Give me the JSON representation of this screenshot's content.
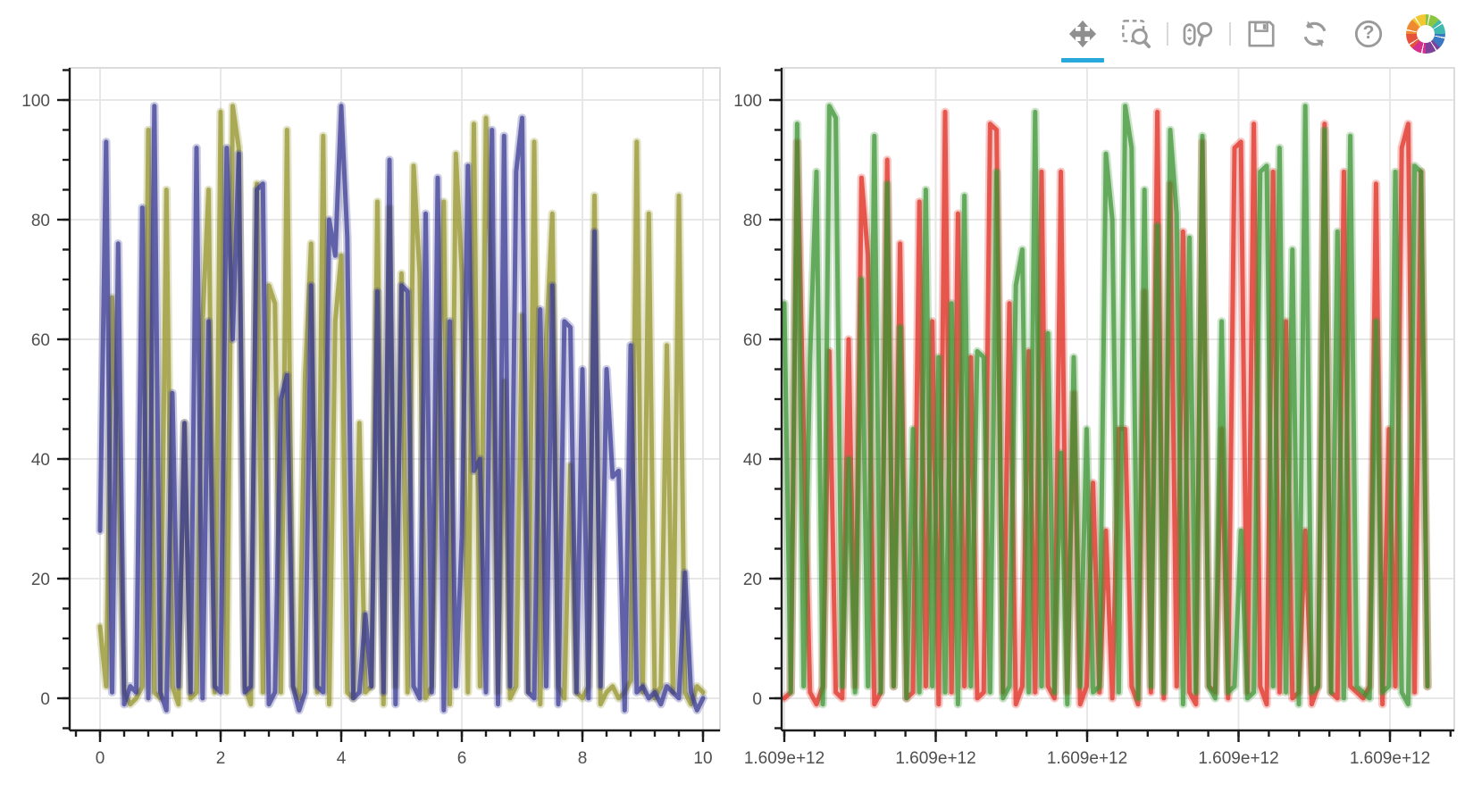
{
  "toolbar": {
    "tools": [
      {
        "name": "pan",
        "active": true
      },
      {
        "name": "box-zoom",
        "active": false
      },
      {
        "name": "wheel-zoom",
        "active": false
      },
      {
        "name": "save",
        "active": false
      },
      {
        "name": "reset",
        "active": false
      },
      {
        "name": "help",
        "active": false
      },
      {
        "name": "bokeh-logo",
        "active": false
      }
    ],
    "help_glyph": "?",
    "active_color": "#29a8dc",
    "icon_color": "#979797"
  },
  "chart_data": [
    {
      "type": "line",
      "title": "",
      "xlabel": "",
      "ylabel": "",
      "x_axis": {
        "range": [
          -0.5,
          10.3
        ],
        "ticks": [
          0,
          2,
          4,
          6,
          8,
          10
        ],
        "tick_labels": [
          "0",
          "2",
          "4",
          "6",
          "8",
          "10"
        ],
        "minor_per_major": 4
      },
      "y_axis": {
        "range": [
          -5.4,
          105.4
        ],
        "ticks": [
          0,
          20,
          40,
          60,
          80,
          100
        ],
        "tick_labels": [
          "0",
          "20",
          "40",
          "60",
          "80",
          "100"
        ],
        "minor_step": 5
      },
      "grid": true,
      "legend": "none",
      "series": [
        {
          "name": "olive",
          "color": "#94932a",
          "opacity": 0.72,
          "width": 6,
          "x_start": 0,
          "x_step": 0.1,
          "values": [
            12,
            2,
            67,
            40,
            1,
            -1,
            0,
            2,
            95,
            1,
            0,
            85,
            2,
            -1,
            46,
            0,
            1,
            63,
            85,
            1,
            98,
            1,
            99,
            92,
            2,
            -1,
            86,
            1,
            69,
            66,
            1,
            95,
            2,
            0,
            54,
            76,
            1,
            94,
            -1,
            63,
            74,
            1,
            0,
            46,
            1,
            2,
            83,
            -1,
            82,
            2,
            71,
            1,
            89,
            71,
            0,
            2,
            46,
            83,
            -1,
            91,
            71,
            1,
            96,
            2,
            97,
            64,
            1,
            53,
            0,
            2,
            64,
            1,
            93,
            -1,
            60,
            81,
            2,
            0,
            39,
            1,
            0,
            2,
            84,
            -1,
            1,
            2,
            0,
            1,
            3,
            93,
            1,
            81,
            0,
            2,
            59,
            1,
            84,
            1,
            -1,
            2,
            1
          ]
        },
        {
          "name": "slate-blue",
          "color": "#373794",
          "opacity": 0.72,
          "width": 6,
          "x_start": 0,
          "x_step": 0.1,
          "values": [
            28,
            93,
            1,
            76,
            -1,
            2,
            1,
            82,
            0,
            99,
            1,
            -2,
            51,
            2,
            46,
            1,
            92,
            0,
            63,
            2,
            1,
            92,
            60,
            91,
            1,
            2,
            85,
            86,
            -1,
            1,
            50,
            54,
            2,
            -2,
            1,
            69,
            2,
            1,
            80,
            74,
            99,
            77,
            0,
            1,
            14,
            2,
            68,
            1,
            90,
            -1,
            69,
            68,
            2,
            0,
            81,
            1,
            87,
            -2,
            63,
            2,
            27,
            89,
            38,
            40,
            1,
            95,
            -1,
            94,
            2,
            88,
            97,
            1,
            0,
            65,
            2,
            69,
            -1,
            63,
            62,
            1,
            55,
            0,
            78,
            2,
            55,
            37,
            38,
            -2,
            59,
            1,
            2,
            0,
            1,
            -1,
            2,
            1,
            0,
            21,
            1,
            -2,
            0
          ]
        }
      ]
    },
    {
      "type": "line",
      "title": "",
      "xlabel": "",
      "ylabel": "",
      "x_axis": {
        "range": [
          1608590000000,
          1609410000000
        ],
        "tick_labels": [
          "1.609e+12",
          "1.609e+12",
          "1.609e+12",
          "1.609e+12",
          "1.609e+12"
        ],
        "minor_per_major": 4
      },
      "y_axis": {
        "range": [
          -5.4,
          105.4
        ],
        "ticks": [
          0,
          20,
          40,
          60,
          80,
          100
        ],
        "tick_labels": [
          "0",
          "20",
          "40",
          "60",
          "80",
          "100"
        ],
        "minor_step": 5
      },
      "grid": true,
      "legend": "none",
      "series": [
        {
          "name": "red",
          "color": "#df291f",
          "opacity": 0.72,
          "width": 6,
          "x_start": 1608600000000,
          "x_step": 8000000,
          "values": [
            0,
            1,
            93,
            45,
            1,
            -1,
            2,
            58,
            1,
            0,
            60,
            2,
            87,
            74,
            -1,
            1,
            90,
            2,
            76,
            0,
            1,
            83,
            2,
            63,
            -1,
            98,
            1,
            81,
            2,
            57,
            0,
            1,
            96,
            95,
            1,
            66,
            -1,
            2,
            58,
            1,
            88,
            2,
            0,
            88,
            1,
            51,
            -1,
            2,
            36,
            1,
            28,
            0,
            45,
            45,
            2,
            -1,
            68,
            1,
            98,
            0,
            86,
            2,
            78,
            1,
            -1,
            93,
            2,
            1,
            45,
            0,
            92,
            93,
            1,
            96,
            2,
            -1,
            88,
            1,
            63,
            0,
            1,
            28,
            -1,
            2,
            96,
            1,
            0,
            88,
            2,
            1,
            0,
            2,
            86,
            -1,
            45,
            2,
            92,
            96,
            1,
            88,
            2
          ]
        },
        {
          "name": "green",
          "color": "#3b9433",
          "opacity": 0.72,
          "width": 6,
          "x_start": 1608600000000,
          "x_step": 8000000,
          "values": [
            66,
            1,
            96,
            2,
            57,
            88,
            -1,
            99,
            97,
            2,
            40,
            1,
            70,
            2,
            94,
            1,
            86,
            2,
            62,
            0,
            45,
            1,
            85,
            2,
            57,
            1,
            66,
            -1,
            84,
            2,
            58,
            57,
            1,
            88,
            0,
            2,
            69,
            75,
            1,
            98,
            2,
            61,
            1,
            41,
            -1,
            57,
            2,
            45,
            1,
            2,
            91,
            80,
            1,
            99,
            92,
            0,
            85,
            2,
            79,
            1,
            95,
            81,
            -1,
            77,
            1,
            94,
            2,
            0,
            63,
            1,
            2,
            28,
            0,
            1,
            88,
            89,
            2,
            92,
            1,
            75,
            -1,
            99,
            1,
            2,
            95,
            1,
            78,
            0,
            94,
            2,
            1,
            0,
            63,
            1,
            2,
            88,
            1,
            -1,
            89,
            88,
            2
          ]
        }
      ]
    }
  ]
}
